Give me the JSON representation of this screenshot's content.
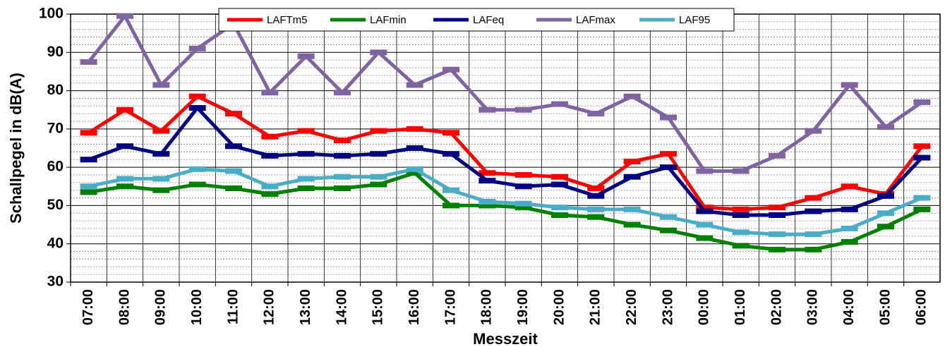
{
  "chart_data": {
    "type": "line",
    "y_label": "Schallpegel in dB(A)",
    "x_label": "Messzeit",
    "categories": [
      "07:00",
      "08:00",
      "09:00",
      "10:00",
      "11:00",
      "12:00",
      "13:00",
      "14:00",
      "15:00",
      "16:00",
      "17:00",
      "18:00",
      "19:00",
      "20:00",
      "21:00",
      "22:00",
      "23:00",
      "00:00",
      "01:00",
      "02:00",
      "03:00",
      "04:00",
      "05:00",
      "06:00"
    ],
    "series": [
      {
        "name": "LAFTm5",
        "color": "#ff0000",
        "values": [
          69,
          75,
          69.5,
          78.5,
          74,
          68,
          69.5,
          67,
          69.5,
          70,
          69,
          58.5,
          58,
          57.5,
          54.5,
          61.5,
          63.5,
          49.5,
          49,
          49.5,
          52,
          55,
          53,
          65.5
        ]
      },
      {
        "name": "LAFmin",
        "color": "#008000",
        "values": [
          53.5,
          55,
          54,
          55.5,
          54.5,
          53,
          54.5,
          54.5,
          55.5,
          58.5,
          50,
          50,
          49.5,
          47.5,
          47,
          45,
          43.5,
          41.5,
          39.5,
          38.5,
          38.5,
          40.5,
          44.5,
          49
        ]
      },
      {
        "name": "LAFeq",
        "color": "#000080",
        "values": [
          62,
          65.5,
          63.5,
          75.5,
          65.5,
          63,
          63.5,
          63,
          63.5,
          65,
          63.5,
          56.5,
          55,
          55.5,
          52.5,
          57.5,
          60,
          48.5,
          47.5,
          47.5,
          48.5,
          49,
          52.5,
          62.5
        ]
      },
      {
        "name": "LAFmax",
        "color": "#8064a2",
        "values": [
          87.5,
          99.5,
          81.5,
          91,
          97.5,
          79.5,
          89,
          79.5,
          90,
          81.5,
          85.5,
          75,
          75,
          76.5,
          74,
          78.5,
          73,
          59,
          59,
          63,
          69.5,
          81.5,
          70.5,
          77
        ]
      },
      {
        "name": "LAF95",
        "color": "#4bacc6",
        "values": [
          55,
          57,
          57,
          59.5,
          59,
          55,
          57,
          57.5,
          57.5,
          59.5,
          54,
          51,
          50.5,
          49.5,
          49,
          49,
          47,
          45,
          43,
          42.5,
          42.5,
          44,
          48,
          52
        ]
      }
    ],
    "ylim": [
      30,
      100
    ],
    "yticks": [
      30,
      40,
      50,
      60,
      70,
      80,
      90,
      100
    ],
    "minor_yticks": [
      32,
      34,
      36,
      38,
      42,
      44,
      46,
      48,
      52,
      54,
      56,
      58,
      62,
      64,
      66,
      68,
      72,
      74,
      76,
      78,
      82,
      84,
      86,
      88,
      92,
      94,
      96,
      98
    ],
    "grid": true,
    "legend": "top"
  }
}
